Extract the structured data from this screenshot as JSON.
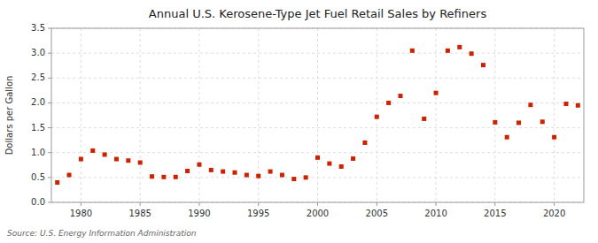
{
  "chart_data": {
    "type": "scatter",
    "title": "Annual U.S. Kerosene-Type Jet Fuel Retail Sales by Refiners",
    "y_label": "Dollars per Gallon",
    "annotations": [
      "Source: U.S. Energy Information Administration"
    ],
    "x": [
      1978,
      1979,
      1980,
      1981,
      1982,
      1983,
      1984,
      1985,
      1986,
      1987,
      1988,
      1989,
      1990,
      1991,
      1992,
      1993,
      1994,
      1995,
      1996,
      1997,
      1998,
      1999,
      2000,
      2001,
      2002,
      2003,
      2004,
      2005,
      2006,
      2007,
      2008,
      2009,
      2010,
      2011,
      2012,
      2013,
      2014,
      2015,
      2016,
      2017,
      2018,
      2019,
      2020,
      2021,
      2022
    ],
    "values": [
      0.4,
      0.55,
      0.87,
      1.04,
      0.96,
      0.87,
      0.84,
      0.8,
      0.52,
      0.51,
      0.51,
      0.63,
      0.76,
      0.65,
      0.62,
      0.6,
      0.55,
      0.53,
      0.62,
      0.55,
      0.47,
      0.5,
      0.9,
      0.78,
      0.72,
      0.88,
      1.2,
      1.72,
      2.0,
      2.14,
      3.05,
      1.68,
      2.2,
      3.05,
      3.12,
      2.99,
      2.76,
      1.61,
      1.31,
      1.6,
      1.96,
      1.62,
      1.31,
      1.98,
      1.95
    ],
    "color": "#CC2200",
    "marker": "square",
    "grid": true,
    "xlim": [
      1977.5,
      2022.5
    ],
    "xticks": [
      1980,
      1985,
      1990,
      1995,
      2000,
      2005,
      2010,
      2015,
      2020
    ],
    "ylim": [
      0.0,
      3.5
    ],
    "yticks": [
      {
        "value": 0.0,
        "label": "0.0"
      },
      0.5,
      {
        "value": 1.0,
        "label": "1.0"
      },
      1.5,
      {
        "value": 2.0,
        "label": "2.0"
      },
      2.5,
      {
        "value": 3.0,
        "label": "3.0"
      },
      3.5
    ]
  }
}
